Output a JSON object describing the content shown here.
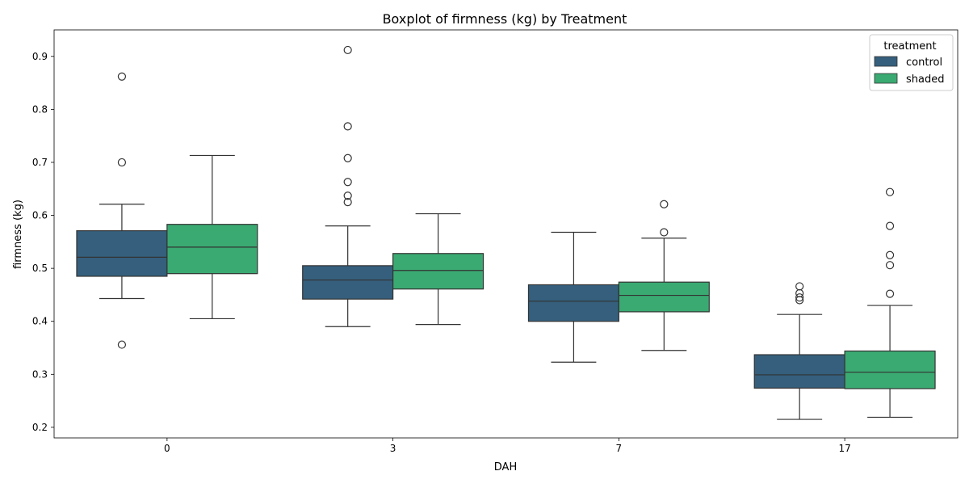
{
  "chart_data": {
    "type": "boxplot",
    "title": "Boxplot of firmness (kg) by Treatment",
    "xlabel": "DAH",
    "ylabel": "firmness (kg)",
    "categories": [
      "0",
      "3",
      "7",
      "17"
    ],
    "ylim": [
      0.18,
      0.95
    ],
    "yticks": [
      0.2,
      0.3,
      0.4,
      0.5,
      0.6,
      0.7,
      0.8,
      0.9
    ],
    "ytick_labels": [
      "0.2",
      "0.3",
      "0.4",
      "0.5",
      "0.6",
      "0.7",
      "0.8",
      "0.9"
    ],
    "grid": false,
    "legend": {
      "title": "treatment",
      "position": "top-right"
    },
    "series": [
      {
        "name": "control",
        "color": "#355f7d",
        "boxes": [
          {
            "whislo": 0.443,
            "q1": 0.485,
            "med": 0.521,
            "q3": 0.571,
            "whishi": 0.621,
            "fliers": [
              0.862,
              0.7,
              0.356
            ]
          },
          {
            "whislo": 0.39,
            "q1": 0.442,
            "med": 0.478,
            "q3": 0.505,
            "whishi": 0.58,
            "fliers": [
              0.912,
              0.768,
              0.708,
              0.663,
              0.637,
              0.625
            ]
          },
          {
            "whislo": 0.323,
            "q1": 0.4,
            "med": 0.438,
            "q3": 0.469,
            "whishi": 0.568,
            "fliers": []
          },
          {
            "whislo": 0.215,
            "q1": 0.274,
            "med": 0.299,
            "q3": 0.337,
            "whishi": 0.413,
            "fliers": [
              0.466,
              0.453,
              0.445,
              0.44
            ]
          }
        ]
      },
      {
        "name": "shaded",
        "color": "#3aaa72",
        "boxes": [
          {
            "whislo": 0.405,
            "q1": 0.49,
            "med": 0.54,
            "q3": 0.583,
            "whishi": 0.713,
            "fliers": []
          },
          {
            "whislo": 0.394,
            "q1": 0.461,
            "med": 0.496,
            "q3": 0.528,
            "whishi": 0.603,
            "fliers": []
          },
          {
            "whislo": 0.345,
            "q1": 0.418,
            "med": 0.449,
            "q3": 0.474,
            "whishi": 0.557,
            "fliers": [
              0.621,
              0.568
            ]
          },
          {
            "whislo": 0.219,
            "q1": 0.273,
            "med": 0.304,
            "q3": 0.344,
            "whishi": 0.43,
            "fliers": [
              0.644,
              0.58,
              0.525,
              0.506,
              0.452
            ]
          }
        ]
      }
    ]
  }
}
